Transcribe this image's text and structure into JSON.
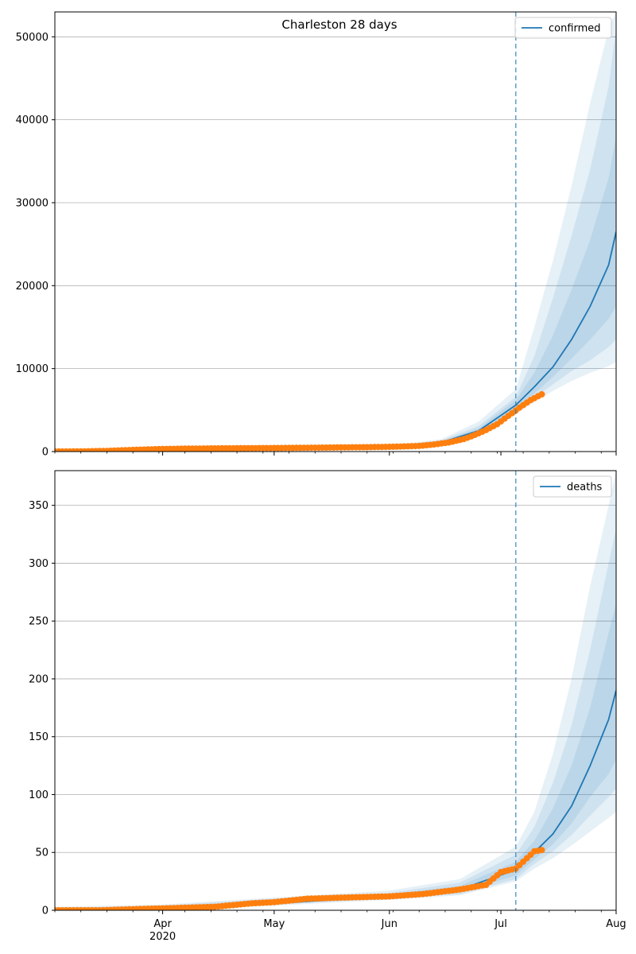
{
  "chart_data": [
    {
      "type": "line",
      "title": "Charleston 28 days",
      "legend": {
        "entry": "confirmed",
        "placement": "top-right"
      },
      "x_range": [
        "2020-03-03",
        "2020-08-01"
      ],
      "x_ticks": [
        {
          "date": "2020-04-01",
          "label": "Apr",
          "sublabel": "2020"
        },
        {
          "date": "2020-05-01",
          "label": "May",
          "sublabel": ""
        },
        {
          "date": "2020-06-01",
          "label": "Jun",
          "sublabel": ""
        },
        {
          "date": "2020-07-01",
          "label": "Jul",
          "sublabel": ""
        },
        {
          "date": "2020-08-01",
          "label": "Aug",
          "sublabel": ""
        }
      ],
      "ylim": [
        0,
        53000
      ],
      "y_ticks": [
        0,
        10000,
        20000,
        30000,
        40000,
        50000
      ],
      "y_tick_labels": [
        "0",
        "10000",
        "20000",
        "30000",
        "40000",
        "50000"
      ],
      "grid": "y",
      "forecast_start": "2020-07-05",
      "colors": {
        "line": "#1f77b4",
        "points": "#ff7f0e",
        "band": "#1f77b4"
      },
      "observed": {
        "x": [
          "2020-03-03",
          "2020-03-10",
          "2020-03-17",
          "2020-03-24",
          "2020-03-31",
          "2020-04-07",
          "2020-04-14",
          "2020-04-21",
          "2020-04-28",
          "2020-05-05",
          "2020-05-12",
          "2020-05-19",
          "2020-05-26",
          "2020-06-02",
          "2020-06-09",
          "2020-06-13",
          "2020-06-17",
          "2020-06-21",
          "2020-06-24",
          "2020-06-27",
          "2020-06-30",
          "2020-07-03",
          "2020-07-06",
          "2020-07-09",
          "2020-07-12"
        ],
        "y": [
          5,
          20,
          80,
          200,
          300,
          350,
          380,
          400,
          420,
          440,
          470,
          500,
          530,
          580,
          680,
          850,
          1100,
          1500,
          2000,
          2600,
          3300,
          4300,
          5300,
          6200,
          6900
        ]
      },
      "model": {
        "x": [
          "2020-03-03",
          "2020-04-15",
          "2020-05-15",
          "2020-06-01",
          "2020-06-15",
          "2020-06-25",
          "2020-07-05",
          "2020-07-10",
          "2020-07-15",
          "2020-07-20",
          "2020-07-25",
          "2020-07-30",
          "2020-08-01"
        ],
        "median": [
          0,
          300,
          450,
          600,
          1100,
          2500,
          5600,
          7800,
          10200,
          13500,
          17500,
          22500,
          26500
        ],
        "bands": [
          {
            "lower": [
              0,
              280,
              420,
              540,
              900,
              2000,
              4500,
              6000,
              7300,
              8500,
              9500,
              10300,
              10800
            ],
            "upper": [
              0,
              340,
              500,
              700,
              1500,
              3600,
              7500,
              15000,
              23000,
              32000,
              42000,
              51000,
              53000
            ]
          },
          {
            "lower": [
              0,
              290,
              430,
              560,
              950,
              2150,
              4800,
              6500,
              8100,
              9700,
              11000,
              12600,
              13500
            ],
            "upper": [
              0,
              330,
              480,
              660,
              1350,
              3100,
              6600,
              11500,
              18500,
              26000,
              34000,
              44000,
              51000
            ]
          },
          {
            "lower": [
              0,
              295,
              440,
              580,
              1000,
              2300,
              5100,
              7000,
              9000,
              11200,
              13500,
              16000,
              17500
            ],
            "upper": [
              0,
              315,
              465,
              630,
              1250,
              2800,
              6200,
              9500,
              14000,
              19500,
              25500,
              33000,
              38000
            ]
          }
        ]
      }
    },
    {
      "type": "line",
      "title": "",
      "legend": {
        "entry": "deaths",
        "placement": "top-right"
      },
      "x_range": [
        "2020-03-03",
        "2020-08-01"
      ],
      "x_ticks": [
        {
          "date": "2020-04-01",
          "label": "Apr",
          "sublabel": "2020"
        },
        {
          "date": "2020-05-01",
          "label": "May",
          "sublabel": ""
        },
        {
          "date": "2020-06-01",
          "label": "Jun",
          "sublabel": ""
        },
        {
          "date": "2020-07-01",
          "label": "Jul",
          "sublabel": ""
        },
        {
          "date": "2020-08-01",
          "label": "Aug",
          "sublabel": ""
        }
      ],
      "ylim": [
        0,
        380
      ],
      "y_ticks": [
        0,
        50,
        100,
        150,
        200,
        250,
        300,
        350
      ],
      "y_tick_labels": [
        "0",
        "50",
        "100",
        "150",
        "200",
        "250",
        "300",
        "350"
      ],
      "grid": "y",
      "forecast_start": "2020-07-05",
      "colors": {
        "line": "#1f77b4",
        "points": "#ff7f0e",
        "band": "#1f77b4"
      },
      "observed": {
        "x": [
          "2020-03-03",
          "2020-03-15",
          "2020-03-25",
          "2020-04-05",
          "2020-04-15",
          "2020-04-25",
          "2020-05-01",
          "2020-05-10",
          "2020-05-20",
          "2020-06-01",
          "2020-06-10",
          "2020-06-20",
          "2020-06-27",
          "2020-07-01",
          "2020-07-05",
          "2020-07-08",
          "2020-07-10",
          "2020-07-12"
        ],
        "y": [
          0,
          0,
          1,
          2,
          3,
          6,
          7,
          10,
          11,
          12,
          14,
          18,
          22,
          33,
          36,
          45,
          51,
          52
        ]
      },
      "model": {
        "x": [
          "2020-03-03",
          "2020-04-01",
          "2020-05-01",
          "2020-06-01",
          "2020-06-20",
          "2020-07-05",
          "2020-07-10",
          "2020-07-15",
          "2020-07-20",
          "2020-07-25",
          "2020-07-30",
          "2020-08-01"
        ],
        "median": [
          0,
          1,
          6,
          12,
          18,
          35,
          50,
          66,
          90,
          125,
          165,
          190
        ],
        "bands": [
          {
            "lower": [
              0,
              0,
              4,
              9,
              13,
              25,
              36,
              45,
              56,
              68,
              80,
              85
            ],
            "upper": [
              3,
              5,
              11,
              17,
              27,
              55,
              85,
              135,
              200,
              280,
              350,
              380
            ]
          },
          {
            "lower": [
              0,
              0,
              5,
              10,
              14,
              27,
              40,
              51,
              65,
              82,
              98,
              105
            ],
            "upper": [
              2,
              4,
              10,
              15,
              24,
              48,
              72,
              110,
              160,
              225,
              300,
              330
            ]
          },
          {
            "lower": [
              0,
              0,
              5,
              11,
              16,
              30,
              44,
              57,
              75,
              98,
              118,
              130
            ],
            "upper": [
              1,
              3,
              8,
              14,
              21,
              42,
              60,
              88,
              125,
              175,
              240,
              265
            ]
          }
        ]
      }
    }
  ]
}
